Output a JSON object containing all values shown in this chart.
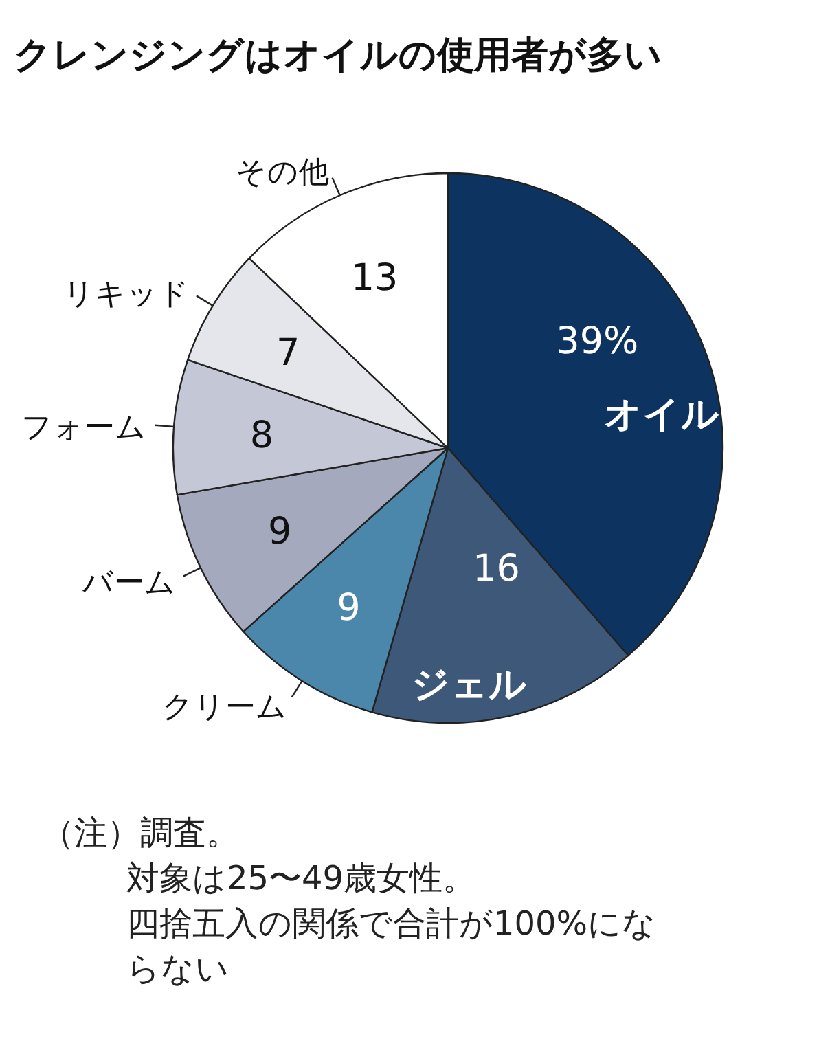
{
  "chart_data": {
    "type": "pie",
    "title": "クレンジングはオイルの使用者が多い",
    "categories": [
      "オイル",
      "ジェル",
      "クリーム",
      "バーム",
      "フォーム",
      "リキッド",
      "その他"
    ],
    "values": [
      39,
      16,
      9,
      9,
      8,
      7,
      13
    ],
    "value_labels": [
      "39%",
      "16",
      "9",
      "9",
      "8",
      "7",
      "13"
    ],
    "colors": [
      "#0d3461",
      "#3d5878",
      "#4a87aa",
      "#a4a9bd",
      "#c4c7d6",
      "#e4e6ec",
      "#ffffff"
    ],
    "annotations": [
      "（注）調査。",
      "対象は25〜49歳女性。",
      "四捨五入の関係で合計が100%にならない"
    ]
  }
}
